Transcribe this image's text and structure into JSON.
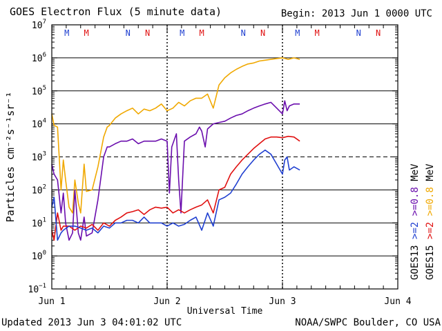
{
  "header": {
    "title": "GOES Electron Flux (5 minute data)",
    "begin": "Begin: 2013 Jun 1 0000 UTC"
  },
  "footer": {
    "updated": "Updated 2013 Jun  3 04:01:02 UTC",
    "credit": "NOAA/SWPC Boulder, CO USA"
  },
  "chart_data": {
    "type": "line",
    "title": "GOES Electron Flux (5 minute data)",
    "xlabel": "Universal Time",
    "ylabel": "Particles cm⁻²s⁻¹sr⁻¹",
    "yscale": "log",
    "ylim": [
      0.1,
      10000000
    ],
    "xlim": [
      0,
      3
    ],
    "x_unit": "days since 2013 Jun 1 0000 UTC",
    "x_ticks": [
      {
        "value": 0,
        "label": "Jun 1"
      },
      {
        "value": 1,
        "label": "Jun 2"
      },
      {
        "value": 2,
        "label": "Jun 3"
      },
      {
        "value": 3,
        "label": "Jun 4"
      }
    ],
    "y_ticks": [
      {
        "exp": -1,
        "base": "10",
        "sup": "−1"
      },
      {
        "exp": 0,
        "base": "10",
        "sup": "0"
      },
      {
        "exp": 1,
        "base": "10",
        "sup": "1"
      },
      {
        "exp": 2,
        "base": "10",
        "sup": "2"
      },
      {
        "exp": 3,
        "base": "10",
        "sup": "3"
      },
      {
        "exp": 4,
        "base": "10",
        "sup": "4"
      },
      {
        "exp": 5,
        "base": "10",
        "sup": "5"
      },
      {
        "exp": 6,
        "base": "10",
        "sup": "6"
      },
      {
        "exp": 7,
        "base": "10",
        "sup": "7"
      }
    ],
    "threshold": {
      "value": 1000,
      "style": "dashed"
    },
    "midnight_markers": [
      1,
      2
    ],
    "noon_midnight_markers": [
      {
        "x": 0.13,
        "label": "M",
        "sat": "GOES13"
      },
      {
        "x": 0.3,
        "label": "M",
        "sat": "GOES15"
      },
      {
        "x": 0.66,
        "label": "N",
        "sat": "GOES13"
      },
      {
        "x": 0.83,
        "label": "N",
        "sat": "GOES15"
      },
      {
        "x": 1.13,
        "label": "M",
        "sat": "GOES13"
      },
      {
        "x": 1.3,
        "label": "M",
        "sat": "GOES15"
      },
      {
        "x": 1.66,
        "label": "N",
        "sat": "GOES13"
      },
      {
        "x": 1.83,
        "label": "N",
        "sat": "GOES15"
      },
      {
        "x": 2.13,
        "label": "M",
        "sat": "GOES13"
      },
      {
        "x": 2.3,
        "label": "M",
        "sat": "GOES15"
      },
      {
        "x": 2.66,
        "label": "N",
        "sat": "GOES13"
      },
      {
        "x": 2.83,
        "label": "N",
        "sat": "GOES15"
      }
    ],
    "legend": {
      "placement": "right",
      "groups": [
        {
          "sat": "GOES13",
          "entries": [
            {
              "label": ">=2",
              "color": "#1f3fd0"
            },
            {
              "label": ">=0.8",
              "color": "#6a0dad"
            }
          ]
        },
        {
          "sat": "GOES15",
          "entries": [
            {
              "label": ">=2",
              "color": "#e01010"
            },
            {
              "label": ">=0.8",
              "color": "#f0a800"
            }
          ]
        },
        {
          "unit": "MeV"
        }
      ]
    },
    "series": [
      {
        "name": "GOES15 >=0.8 MeV",
        "color": "#f0a800",
        "x": [
          0,
          0.02,
          0.05,
          0.08,
          0.1,
          0.12,
          0.15,
          0.18,
          0.2,
          0.23,
          0.25,
          0.28,
          0.3,
          0.35,
          0.4,
          0.45,
          0.48,
          0.5,
          0.55,
          0.6,
          0.65,
          0.7,
          0.75,
          0.8,
          0.85,
          0.9,
          0.95,
          1.0,
          1.05,
          1.1,
          1.15,
          1.2,
          1.25,
          1.3,
          1.35,
          1.4,
          1.45,
          1.5,
          1.55,
          1.6,
          1.65,
          1.7,
          1.75,
          1.8,
          1.85,
          1.9,
          1.95,
          2.0,
          2.05,
          2.1,
          2.15
        ],
        "y": [
          20000,
          9000,
          8000,
          100,
          800,
          200,
          30,
          20,
          200,
          40,
          20,
          600,
          90,
          100,
          500,
          4000,
          8000,
          9000,
          15000,
          20000,
          25000,
          30000,
          20000,
          28000,
          25000,
          30000,
          40000,
          25000,
          30000,
          45000,
          35000,
          50000,
          60000,
          60000,
          80000,
          30000,
          150000,
          250000,
          350000,
          450000,
          550000,
          650000,
          700000,
          800000,
          850000,
          900000,
          950000,
          1000000,
          900000,
          1000000,
          900000
        ]
      },
      {
        "name": "GOES13 >=0.8 MeV",
        "color": "#6a0dad",
        "x": [
          0,
          0.02,
          0.05,
          0.08,
          0.1,
          0.12,
          0.15,
          0.18,
          0.2,
          0.23,
          0.25,
          0.28,
          0.3,
          0.35,
          0.4,
          0.45,
          0.48,
          0.5,
          0.55,
          0.6,
          0.65,
          0.7,
          0.75,
          0.8,
          0.85,
          0.9,
          0.95,
          1.0,
          1.02,
          1.04,
          1.08,
          1.1,
          1.12,
          1.15,
          1.2,
          1.25,
          1.28,
          1.3,
          1.33,
          1.35,
          1.4,
          1.45,
          1.5,
          1.55,
          1.6,
          1.65,
          1.7,
          1.75,
          1.8,
          1.85,
          1.9,
          1.95,
          2.0,
          2.02,
          2.04,
          2.06,
          2.1,
          2.15
        ],
        "y": [
          600,
          300,
          200,
          20,
          80,
          10,
          3,
          5,
          100,
          5,
          3,
          15,
          4,
          5,
          50,
          1000,
          2000,
          2000,
          2500,
          3000,
          3000,
          3500,
          2500,
          3000,
          3000,
          3000,
          3500,
          3000,
          80,
          2000,
          5000,
          200,
          20,
          3000,
          4000,
          5000,
          8000,
          6000,
          2000,
          7000,
          10000,
          11000,
          12000,
          15000,
          18000,
          20000,
          25000,
          30000,
          35000,
          40000,
          45000,
          30000,
          20000,
          50000,
          25000,
          35000,
          40000,
          40000
        ]
      },
      {
        "name": "GOES15 >=2 MeV",
        "color": "#e01010",
        "x": [
          0,
          0.02,
          0.05,
          0.08,
          0.1,
          0.15,
          0.2,
          0.25,
          0.3,
          0.35,
          0.4,
          0.45,
          0.5,
          0.55,
          0.6,
          0.65,
          0.7,
          0.75,
          0.8,
          0.85,
          0.9,
          0.95,
          1.0,
          1.05,
          1.1,
          1.15,
          1.2,
          1.25,
          1.3,
          1.35,
          1.4,
          1.45,
          1.5,
          1.55,
          1.6,
          1.65,
          1.7,
          1.75,
          1.8,
          1.85,
          1.9,
          1.95,
          2.0,
          2.05,
          2.1,
          2.15
        ],
        "y": [
          6,
          3,
          20,
          6,
          8,
          8,
          6,
          8,
          7,
          9,
          6,
          10,
          8,
          12,
          15,
          20,
          22,
          25,
          18,
          25,
          30,
          28,
          30,
          20,
          25,
          20,
          25,
          30,
          35,
          50,
          20,
          100,
          120,
          300,
          500,
          800,
          1200,
          1800,
          2500,
          3500,
          4000,
          4000,
          3800,
          4200,
          4000,
          3000
        ]
      },
      {
        "name": "GOES13 >=2 MeV",
        "color": "#1f3fd0",
        "x": [
          0,
          0.02,
          0.05,
          0.08,
          0.1,
          0.15,
          0.2,
          0.25,
          0.3,
          0.35,
          0.4,
          0.45,
          0.5,
          0.55,
          0.6,
          0.65,
          0.7,
          0.75,
          0.8,
          0.85,
          0.9,
          0.95,
          1.0,
          1.05,
          1.1,
          1.15,
          1.2,
          1.25,
          1.3,
          1.35,
          1.4,
          1.45,
          1.5,
          1.55,
          1.6,
          1.65,
          1.7,
          1.75,
          1.8,
          1.85,
          1.9,
          1.95,
          2.0,
          2.02,
          2.04,
          2.06,
          2.1,
          2.15
        ],
        "y": [
          30,
          60,
          3,
          5,
          6,
          8,
          8,
          7,
          6,
          7,
          5,
          8,
          7,
          10,
          10,
          12,
          12,
          10,
          15,
          10,
          10,
          10,
          8,
          10,
          8,
          9,
          12,
          15,
          6,
          20,
          8,
          50,
          60,
          80,
          150,
          300,
          500,
          800,
          1200,
          1600,
          1200,
          600,
          300,
          800,
          1000,
          400,
          500,
          400
        ]
      }
    ]
  }
}
